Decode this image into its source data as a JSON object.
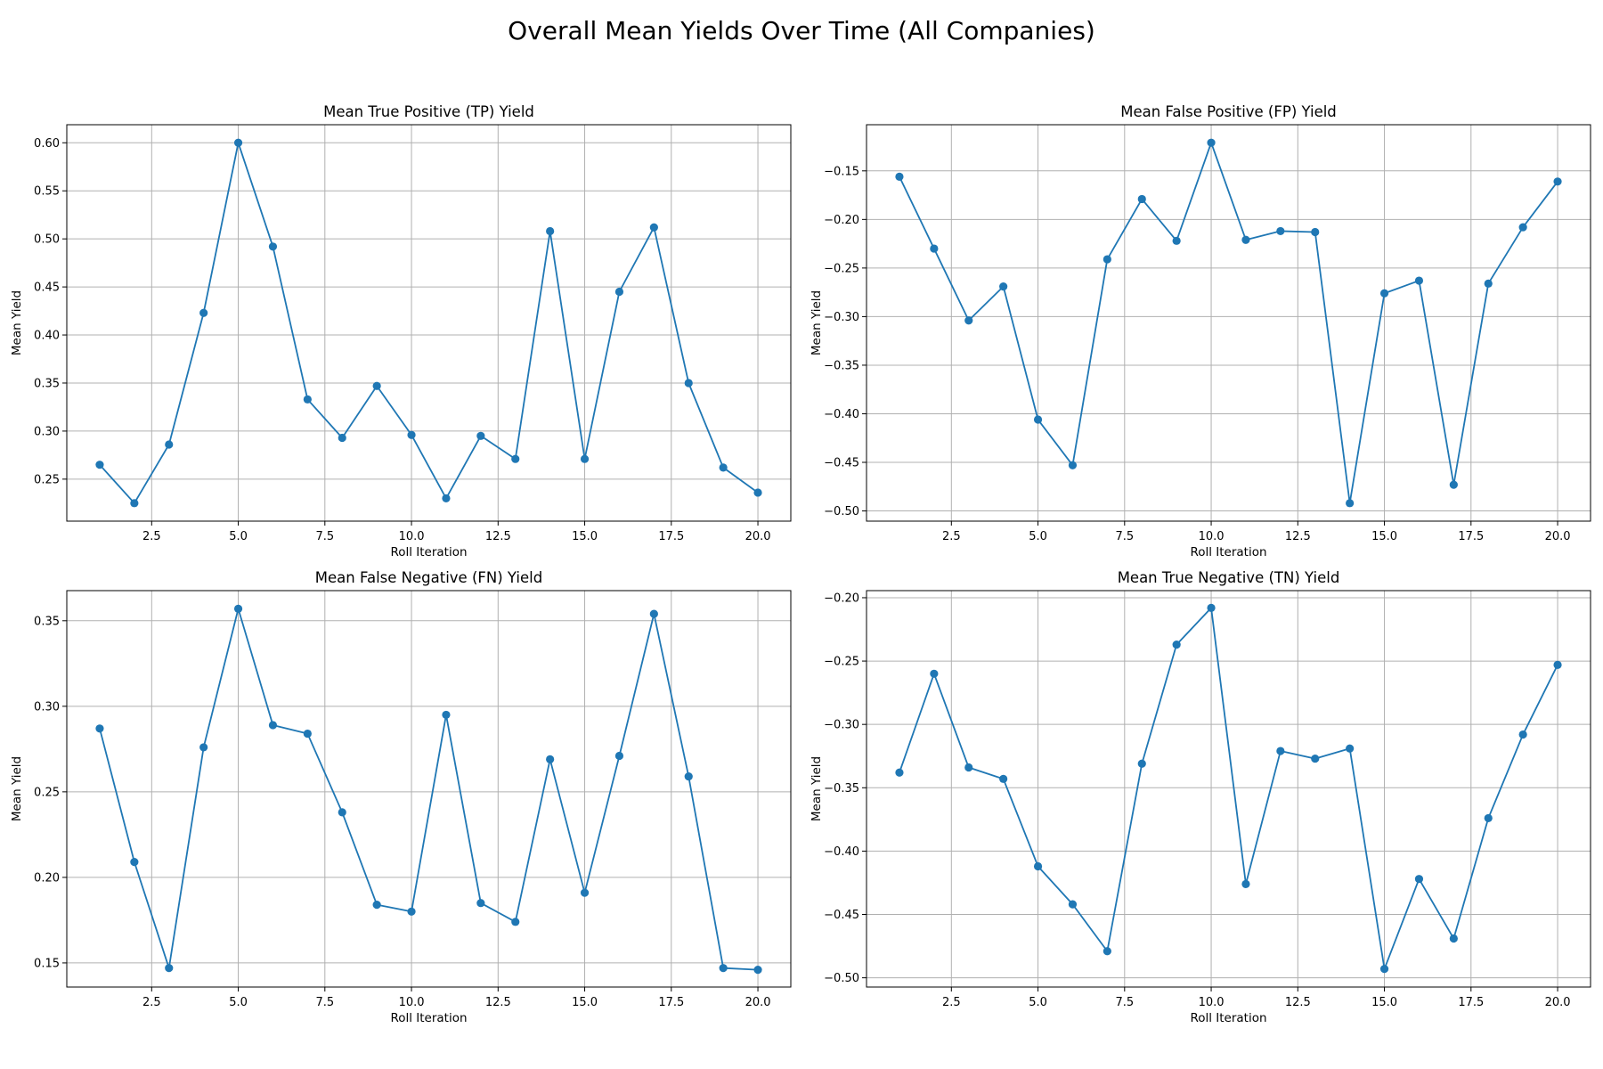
{
  "figure": {
    "title": "Overall Mean Yields Over Time (All Companies)",
    "line_color": "#1f77b4",
    "grid_color": "#b0b0b0"
  },
  "chart_data": [
    {
      "type": "line",
      "title": "Mean True Positive (TP) Yield",
      "xlabel": "Roll Iteration",
      "ylabel": "Mean Yield",
      "grid": true,
      "x": [
        1,
        2,
        3,
        4,
        5,
        6,
        7,
        8,
        9,
        10,
        11,
        12,
        13,
        14,
        15,
        16,
        17,
        18,
        19,
        20
      ],
      "y": [
        0.265,
        0.225,
        0.286,
        0.423,
        0.6,
        0.492,
        0.333,
        0.293,
        0.347,
        0.296,
        0.23,
        0.295,
        0.271,
        0.508,
        0.271,
        0.445,
        0.512,
        0.35,
        0.262,
        0.236
      ],
      "xlim": [
        0.05,
        20.95
      ],
      "ylim": [
        0.2063,
        0.6188
      ],
      "xticks": [
        2.5,
        5.0,
        7.5,
        10.0,
        12.5,
        15.0,
        17.5,
        20.0
      ],
      "xtick_labels": [
        "2.5",
        "5.0",
        "7.5",
        "10.0",
        "12.5",
        "15.0",
        "17.5",
        "20.0"
      ],
      "yticks": [
        0.25,
        0.3,
        0.35,
        0.4,
        0.45,
        0.5,
        0.55,
        0.6
      ],
      "ytick_labels": [
        "0.25",
        "0.30",
        "0.35",
        "0.40",
        "0.45",
        "0.50",
        "0.55",
        "0.60"
      ]
    },
    {
      "type": "line",
      "title": "Mean False Positive (FP) Yield",
      "xlabel": "Roll Iteration",
      "ylabel": "Mean Yield",
      "grid": true,
      "x": [
        1,
        2,
        3,
        4,
        5,
        6,
        7,
        8,
        9,
        10,
        11,
        12,
        13,
        14,
        15,
        16,
        17,
        18,
        19,
        20
      ],
      "y": [
        -0.156,
        -0.23,
        -0.304,
        -0.269,
        -0.406,
        -0.453,
        -0.241,
        -0.179,
        -0.222,
        -0.121,
        -0.221,
        -0.212,
        -0.213,
        -0.492,
        -0.276,
        -0.263,
        -0.473,
        -0.266,
        -0.208,
        -0.161
      ],
      "xlim": [
        0.05,
        20.95
      ],
      "ylim": [
        -0.5105,
        -0.1025
      ],
      "xticks": [
        2.5,
        5.0,
        7.5,
        10.0,
        12.5,
        15.0,
        17.5,
        20.0
      ],
      "xtick_labels": [
        "2.5",
        "5.0",
        "7.5",
        "10.0",
        "12.5",
        "15.0",
        "17.5",
        "20.0"
      ],
      "yticks": [
        -0.5,
        -0.45,
        -0.4,
        -0.35,
        -0.3,
        -0.25,
        -0.2,
        -0.15
      ],
      "ytick_labels": [
        "−0.50",
        "−0.45",
        "−0.40",
        "−0.35",
        "−0.30",
        "−0.25",
        "−0.20",
        "−0.15"
      ]
    },
    {
      "type": "line",
      "title": "Mean False Negative (FN) Yield",
      "xlabel": "Roll Iteration",
      "ylabel": "Mean Yield",
      "grid": true,
      "x": [
        1,
        2,
        3,
        4,
        5,
        6,
        7,
        8,
        9,
        10,
        11,
        12,
        13,
        14,
        15,
        16,
        17,
        18,
        19,
        20
      ],
      "y": [
        0.287,
        0.209,
        0.147,
        0.276,
        0.357,
        0.289,
        0.284,
        0.238,
        0.184,
        0.18,
        0.295,
        0.185,
        0.174,
        0.269,
        0.191,
        0.271,
        0.354,
        0.259,
        0.147,
        0.146
      ],
      "xlim": [
        0.05,
        20.95
      ],
      "ylim": [
        0.1359,
        0.3676
      ],
      "xticks": [
        2.5,
        5.0,
        7.5,
        10.0,
        12.5,
        15.0,
        17.5,
        20.0
      ],
      "xtick_labels": [
        "2.5",
        "5.0",
        "7.5",
        "10.0",
        "12.5",
        "15.0",
        "17.5",
        "20.0"
      ],
      "yticks": [
        0.15,
        0.2,
        0.25,
        0.3,
        0.35
      ],
      "ytick_labels": [
        "0.15",
        "0.20",
        "0.25",
        "0.30",
        "0.35"
      ]
    },
    {
      "type": "line",
      "title": "Mean True Negative (TN) Yield",
      "xlabel": "Roll Iteration",
      "ylabel": "Mean Yield",
      "grid": true,
      "x": [
        1,
        2,
        3,
        4,
        5,
        6,
        7,
        8,
        9,
        10,
        11,
        12,
        13,
        14,
        15,
        16,
        17,
        18,
        19,
        20
      ],
      "y": [
        -0.338,
        -0.26,
        -0.334,
        -0.343,
        -0.412,
        -0.442,
        -0.479,
        -0.331,
        -0.237,
        -0.208,
        -0.426,
        -0.321,
        -0.327,
        -0.319,
        -0.493,
        -0.422,
        -0.469,
        -0.374,
        -0.308,
        -0.253
      ],
      "xlim": [
        0.05,
        20.95
      ],
      "ylim": [
        -0.5073,
        -0.1944
      ],
      "xticks": [
        2.5,
        5.0,
        7.5,
        10.0,
        12.5,
        15.0,
        17.5,
        20.0
      ],
      "xtick_labels": [
        "2.5",
        "5.0",
        "7.5",
        "10.0",
        "12.5",
        "15.0",
        "17.5",
        "20.0"
      ],
      "yticks": [
        -0.5,
        -0.45,
        -0.4,
        -0.35,
        -0.3,
        -0.25,
        -0.2
      ],
      "ytick_labels": [
        "−0.50",
        "−0.45",
        "−0.40",
        "−0.35",
        "−0.30",
        "−0.25",
        "−0.20"
      ]
    }
  ]
}
